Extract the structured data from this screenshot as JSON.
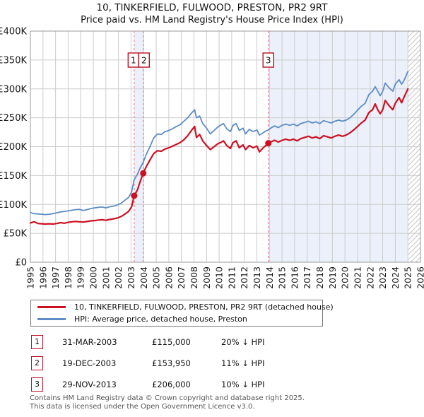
{
  "title": "10, TINKERFIELD, FULWOOD, PRESTON, PR2 9RT",
  "subtitle": "Price paid vs. HM Land Registry's House Price Index (HPI)",
  "chart_data": {
    "type": "line",
    "xlim": [
      1995,
      2026
    ],
    "ylim_k": [
      0,
      400
    ],
    "grid": true,
    "x_tick_labels": [
      "1995",
      "1996",
      "1997",
      "1998",
      "1999",
      "2000",
      "2001",
      "2002",
      "2003",
      "2004",
      "2005",
      "2006",
      "2007",
      "2008",
      "2009",
      "2010",
      "2011",
      "2012",
      "2013",
      "2014",
      "2015",
      "2016",
      "2017",
      "2018",
      "2019",
      "2020",
      "2021",
      "2022",
      "2023",
      "2024",
      "2025",
      "2026"
    ],
    "y_ticks": [
      {
        "v": 0,
        "label": "£0"
      },
      {
        "v": 50,
        "label": "£50K"
      },
      {
        "v": 100,
        "label": "£100K"
      },
      {
        "v": 150,
        "label": "£150K"
      },
      {
        "v": 200,
        "label": "£200K"
      },
      {
        "v": 250,
        "label": "£250K"
      },
      {
        "v": 300,
        "label": "£300K"
      },
      {
        "v": 350,
        "label": "£350K"
      },
      {
        "v": 400,
        "label": "£400K"
      }
    ],
    "series": [
      {
        "name": "HPI: Average price, detached house, Preston",
        "color": "#5d8cc6",
        "width": 1.8,
        "points_k": [
          [
            1995.0,
            86
          ],
          [
            1995.3,
            84
          ],
          [
            1995.6,
            83.5
          ],
          [
            1995.9,
            83
          ],
          [
            1996.2,
            82.5
          ],
          [
            1996.5,
            83
          ],
          [
            1996.8,
            84
          ],
          [
            1997.1,
            85.5
          ],
          [
            1997.4,
            87
          ],
          [
            1997.7,
            88
          ],
          [
            1998,
            89
          ],
          [
            1998.3,
            90
          ],
          [
            1998.6,
            91
          ],
          [
            1998.9,
            91.5
          ],
          [
            1999.2,
            89.5
          ],
          [
            1999.5,
            91
          ],
          [
            1999.8,
            93
          ],
          [
            2000.1,
            94
          ],
          [
            2000.4,
            95
          ],
          [
            2000.7,
            95.5
          ],
          [
            2001,
            94
          ],
          [
            2001.3,
            96
          ],
          [
            2001.6,
            97
          ],
          [
            2001.9,
            99
          ],
          [
            2002.2,
            102
          ],
          [
            2002.5,
            107
          ],
          [
            2002.8,
            112
          ],
          [
            2003.05,
            122
          ],
          [
            2003.25,
            143
          ],
          [
            2003.5,
            152
          ],
          [
            2003.7,
            162
          ],
          [
            2003.97,
            173
          ],
          [
            2004.2,
            186
          ],
          [
            2004.5,
            200
          ],
          [
            2004.8,
            215
          ],
          [
            2005.1,
            222
          ],
          [
            2005.4,
            221
          ],
          [
            2005.7,
            226
          ],
          [
            2006,
            228
          ],
          [
            2006.3,
            231
          ],
          [
            2006.6,
            235
          ],
          [
            2006.9,
            238
          ],
          [
            2007.2,
            244
          ],
          [
            2007.5,
            250
          ],
          [
            2007.8,
            258
          ],
          [
            2008.05,
            264
          ],
          [
            2008.2,
            250
          ],
          [
            2008.45,
            253
          ],
          [
            2008.7,
            240
          ],
          [
            2009,
            232
          ],
          [
            2009.3,
            222
          ],
          [
            2009.6,
            228
          ],
          [
            2009.9,
            234
          ],
          [
            2010.1,
            237
          ],
          [
            2010.35,
            240
          ],
          [
            2010.6,
            231
          ],
          [
            2010.9,
            226
          ],
          [
            2011.1,
            237
          ],
          [
            2011.35,
            240
          ],
          [
            2011.6,
            228
          ],
          [
            2011.9,
            232
          ],
          [
            2012.1,
            222
          ],
          [
            2012.4,
            230
          ],
          [
            2012.7,
            226
          ],
          [
            2013,
            229
          ],
          [
            2013.2,
            220
          ],
          [
            2013.5,
            224
          ],
          [
            2013.7,
            227
          ],
          [
            2013.91,
            229
          ],
          [
            2014.1,
            232
          ],
          [
            2014.4,
            236
          ],
          [
            2014.7,
            233
          ],
          [
            2015,
            237
          ],
          [
            2015.3,
            239
          ],
          [
            2015.6,
            237
          ],
          [
            2015.9,
            239
          ],
          [
            2016.2,
            236
          ],
          [
            2016.5,
            240
          ],
          [
            2016.8,
            242
          ],
          [
            2017.1,
            244
          ],
          [
            2017.4,
            241
          ],
          [
            2017.7,
            243
          ],
          [
            2018,
            240
          ],
          [
            2018.3,
            245
          ],
          [
            2018.6,
            243
          ],
          [
            2018.9,
            241
          ],
          [
            2019.2,
            244
          ],
          [
            2019.5,
            246
          ],
          [
            2019.8,
            244
          ],
          [
            2020.1,
            246
          ],
          [
            2020.4,
            250
          ],
          [
            2020.7,
            256
          ],
          [
            2021,
            263
          ],
          [
            2021.3,
            270
          ],
          [
            2021.6,
            275
          ],
          [
            2021.9,
            290
          ],
          [
            2022.2,
            296
          ],
          [
            2022.4,
            304
          ],
          [
            2022.6,
            296
          ],
          [
            2022.8,
            288
          ],
          [
            2023,
            296
          ],
          [
            2023.2,
            310
          ],
          [
            2023.5,
            302
          ],
          [
            2023.8,
            296
          ],
          [
            2024,
            308
          ],
          [
            2024.3,
            316
          ],
          [
            2024.5,
            308
          ],
          [
            2024.7,
            315
          ],
          [
            2025,
            330
          ]
        ]
      },
      {
        "name": "10, TINKERFIELD, FULWOOD, PRESTON, PR2 9RT (detached house)",
        "color": "#cc1122",
        "width": 2.2,
        "points_k": [
          [
            1995.0,
            68
          ],
          [
            1995.3,
            70
          ],
          [
            1995.6,
            67
          ],
          [
            1995.9,
            66.5
          ],
          [
            1996.2,
            66
          ],
          [
            1996.5,
            66.5
          ],
          [
            1996.8,
            66
          ],
          [
            1997.1,
            67
          ],
          [
            1997.4,
            68.5
          ],
          [
            1997.7,
            67.5
          ],
          [
            1998,
            69
          ],
          [
            1998.3,
            70
          ],
          [
            1998.6,
            70.5
          ],
          [
            1998.9,
            70
          ],
          [
            1999.2,
            69.5
          ],
          [
            1999.5,
            70.5
          ],
          [
            1999.8,
            71.5
          ],
          [
            2000.1,
            72
          ],
          [
            2000.4,
            73
          ],
          [
            2000.7,
            73.5
          ],
          [
            2001,
            72.5
          ],
          [
            2001.3,
            74
          ],
          [
            2001.6,
            75
          ],
          [
            2001.9,
            76.5
          ],
          [
            2002.2,
            79
          ],
          [
            2002.5,
            83
          ],
          [
            2002.8,
            88
          ],
          [
            2003.05,
            96
          ],
          [
            2003.25,
            115
          ],
          [
            2003.5,
            125
          ],
          [
            2003.7,
            138
          ],
          [
            2003.97,
            153.95
          ],
          [
            2004.2,
            165
          ],
          [
            2004.5,
            177
          ],
          [
            2004.8,
            188
          ],
          [
            2005.1,
            193
          ],
          [
            2005.4,
            192
          ],
          [
            2005.7,
            196
          ],
          [
            2006,
            198
          ],
          [
            2006.3,
            201
          ],
          [
            2006.6,
            204
          ],
          [
            2006.9,
            207
          ],
          [
            2007.2,
            212
          ],
          [
            2007.5,
            219
          ],
          [
            2007.8,
            228
          ],
          [
            2008.05,
            235
          ],
          [
            2008.2,
            216
          ],
          [
            2008.45,
            221
          ],
          [
            2008.7,
            210
          ],
          [
            2009,
            202
          ],
          [
            2009.3,
            195
          ],
          [
            2009.6,
            200
          ],
          [
            2009.9,
            205
          ],
          [
            2010.1,
            207
          ],
          [
            2010.35,
            210
          ],
          [
            2010.6,
            202
          ],
          [
            2010.9,
            197
          ],
          [
            2011.1,
            207
          ],
          [
            2011.35,
            210
          ],
          [
            2011.6,
            198
          ],
          [
            2011.9,
            203
          ],
          [
            2012.1,
            195
          ],
          [
            2012.4,
            202
          ],
          [
            2012.7,
            198
          ],
          [
            2013,
            201
          ],
          [
            2013.2,
            191
          ],
          [
            2013.5,
            198
          ],
          [
            2013.7,
            202
          ],
          [
            2013.91,
            206
          ],
          [
            2014.1,
            208
          ],
          [
            2014.4,
            211
          ],
          [
            2014.7,
            208
          ],
          [
            2015,
            211
          ],
          [
            2015.3,
            213
          ],
          [
            2015.6,
            211
          ],
          [
            2015.9,
            213
          ],
          [
            2016.2,
            210
          ],
          [
            2016.5,
            214
          ],
          [
            2016.8,
            216
          ],
          [
            2017.1,
            218
          ],
          [
            2017.4,
            215
          ],
          [
            2017.7,
            217
          ],
          [
            2018,
            214
          ],
          [
            2018.3,
            219
          ],
          [
            2018.6,
            217
          ],
          [
            2018.9,
            215
          ],
          [
            2019.2,
            218
          ],
          [
            2019.5,
            220
          ],
          [
            2019.8,
            218
          ],
          [
            2020.1,
            220
          ],
          [
            2020.4,
            224
          ],
          [
            2020.7,
            229
          ],
          [
            2021,
            235
          ],
          [
            2021.3,
            241
          ],
          [
            2021.6,
            246
          ],
          [
            2021.9,
            259
          ],
          [
            2022.2,
            264
          ],
          [
            2022.4,
            274
          ],
          [
            2022.6,
            264
          ],
          [
            2022.8,
            257
          ],
          [
            2023,
            264
          ],
          [
            2023.2,
            280
          ],
          [
            2023.5,
            271
          ],
          [
            2023.8,
            264
          ],
          [
            2024,
            275
          ],
          [
            2024.3,
            285
          ],
          [
            2024.5,
            276
          ],
          [
            2024.7,
            286
          ],
          [
            2025,
            300
          ]
        ]
      }
    ],
    "sales": [
      {
        "label": "1",
        "x": 2003.25,
        "price_k": 115
      },
      {
        "label": "2",
        "x": 2003.97,
        "price_k": 153.95
      },
      {
        "label": "3",
        "x": 2013.91,
        "price_k": 206
      }
    ],
    "shaded_spans": [
      [
        2003.25,
        2003.97
      ],
      [
        2013.91,
        2025
      ]
    ],
    "hatch_span": [
      2025,
      2026
    ],
    "colors": {
      "grid": "#cccccc",
      "border": "#999999",
      "shade": "#ebf0fa",
      "sale_line": "#ee8888",
      "sale_dot": "#cc1122",
      "marker_box_border": "#bb1122",
      "hatch": "#c6c6c6",
      "tick_text": "#1a1a1a"
    }
  },
  "legend": {
    "items": [
      {
        "label": "10, TINKERFIELD, FULWOOD, PRESTON, PR2 9RT (detached house)",
        "color": "#cc1122"
      },
      {
        "label": "HPI: Average price, detached house, Preston",
        "color": "#5d8cc6"
      }
    ]
  },
  "table": {
    "rows": [
      {
        "num": "1",
        "date": "31-MAR-2003",
        "price": "£115,000",
        "vs_hpi": "20% ↓ HPI"
      },
      {
        "num": "2",
        "date": "19-DEC-2003",
        "price": "£153,950",
        "vs_hpi": "11% ↓ HPI"
      },
      {
        "num": "3",
        "date": "29-NOV-2013",
        "price": "£206,000",
        "vs_hpi": "10% ↓ HPI"
      }
    ]
  },
  "footer": {
    "line1": "Contains HM Land Registry data © Crown copyright and database right 2025.",
    "line2": "This data is licensed under the Open Government Licence v3.0."
  }
}
